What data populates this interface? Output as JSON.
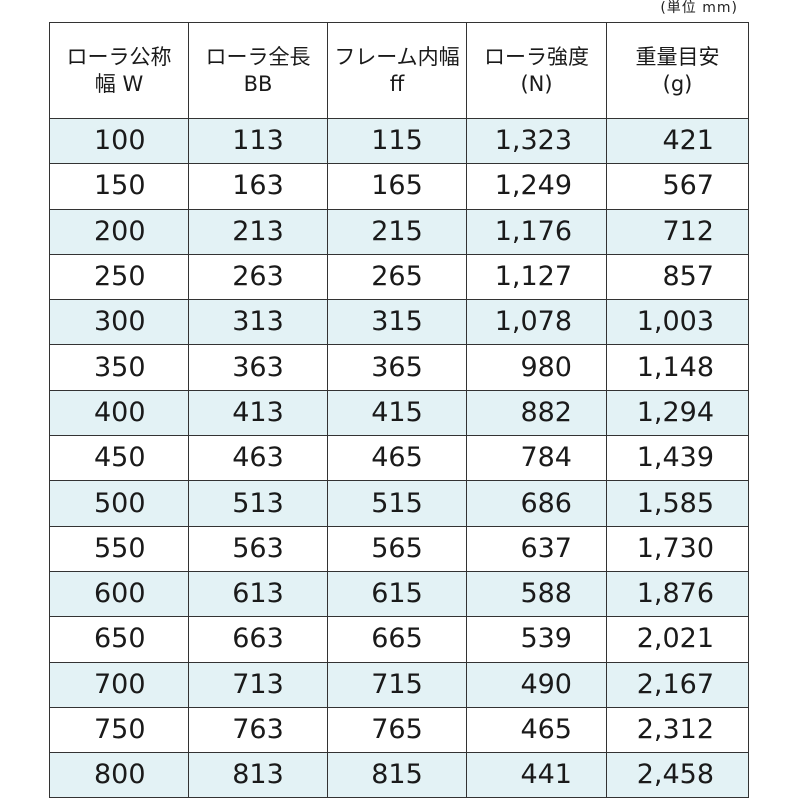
{
  "unit_note": "(単位 mm)",
  "headers": [
    {
      "line1": "ローラ公称",
      "line2": "幅 W"
    },
    {
      "line1": "ローラ全長",
      "line2": "BB"
    },
    {
      "line1": "フレーム内幅",
      "line2": "ff"
    },
    {
      "line1": "ローラ強度",
      "line2": "(N)"
    },
    {
      "line1": "重量目安",
      "line2": "(g)"
    }
  ],
  "rows": [
    [
      "100",
      "113",
      "115",
      "1,323",
      "421"
    ],
    [
      "150",
      "163",
      "165",
      "1,249",
      "567"
    ],
    [
      "200",
      "213",
      "215",
      "1,176",
      "712"
    ],
    [
      "250",
      "263",
      "265",
      "1,127",
      "857"
    ],
    [
      "300",
      "313",
      "315",
      "1,078",
      "1,003"
    ],
    [
      "350",
      "363",
      "365",
      "980",
      "1,148"
    ],
    [
      "400",
      "413",
      "415",
      "882",
      "1,294"
    ],
    [
      "450",
      "463",
      "465",
      "784",
      "1,439"
    ],
    [
      "500",
      "513",
      "515",
      "686",
      "1,585"
    ],
    [
      "550",
      "563",
      "565",
      "637",
      "1,730"
    ],
    [
      "600",
      "613",
      "615",
      "588",
      "1,876"
    ],
    [
      "650",
      "663",
      "665",
      "539",
      "2,021"
    ],
    [
      "700",
      "713",
      "715",
      "490",
      "2,167"
    ],
    [
      "750",
      "763",
      "765",
      "465",
      "2,312"
    ],
    [
      "800",
      "813",
      "815",
      "441",
      "2,458"
    ]
  ],
  "colors": {
    "shaded_row": "#e3f2f5",
    "border": "#333333"
  }
}
